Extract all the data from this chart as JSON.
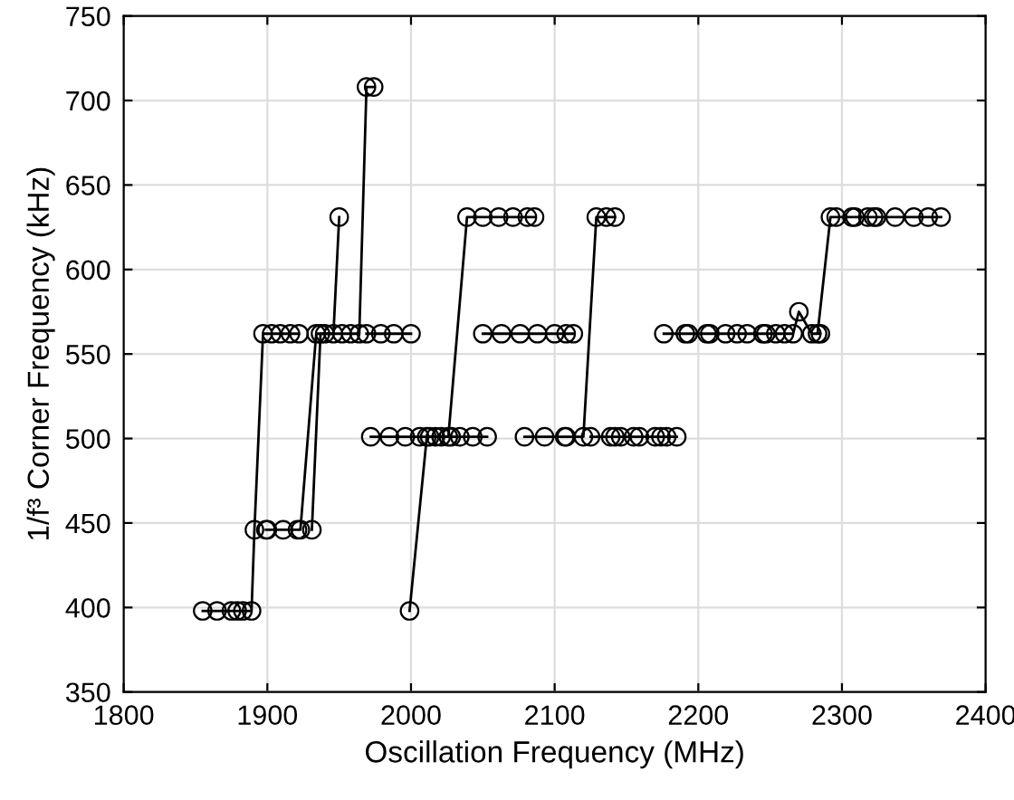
{
  "chart_data": {
    "type": "line",
    "xlabel": "Oscillation Frequency (MHz)",
    "ylabel": "1/f³ Corner Frequency (kHz)",
    "xlim": [
      1800,
      2400
    ],
    "ylim": [
      350,
      750
    ],
    "xticks": [
      1800,
      1900,
      2000,
      2100,
      2200,
      2300,
      2400
    ],
    "yticks": [
      350,
      400,
      450,
      500,
      550,
      600,
      650,
      700,
      750
    ],
    "grid": true,
    "marker": "circle",
    "line_style": "solid",
    "series": [
      {
        "color": "#000000",
        "x": [
          1855,
          1865,
          1875,
          1879,
          1883,
          1889,
          1891,
          1897,
          1903,
          1909,
          1916,
          1922
        ],
        "values": [
          398,
          398,
          398,
          398,
          398,
          398,
          446,
          562,
          562,
          562,
          562,
          562
        ]
      },
      {
        "color": "#000000",
        "x": [
          1899,
          1900,
          1911,
          1921,
          1923,
          1934,
          1940,
          1946,
          1950
        ],
        "values": [
          446,
          446,
          446,
          446,
          446,
          562,
          562,
          562,
          631
        ]
      },
      {
        "color": "#000000",
        "x": [
          1931,
          1937,
          1952,
          1958,
          1964,
          1969,
          1974
        ],
        "values": [
          446,
          562,
          562,
          562,
          562,
          708,
          708
        ]
      },
      {
        "color": "#000000",
        "x": [
          1969,
          1979,
          1988,
          2000
        ],
        "values": [
          562,
          562,
          562,
          562
        ]
      },
      {
        "color": "#000000",
        "x": [
          1972,
          1985,
          1996,
          2006,
          2013,
          2017,
          2028,
          2034,
          2043,
          2053
        ],
        "values": [
          501,
          501,
          501,
          501,
          501,
          501,
          501,
          501,
          501,
          501
        ]
      },
      {
        "color": "#000000",
        "x": [
          1999,
          2011,
          2021,
          2026,
          2039,
          2050,
          2061,
          2071,
          2081,
          2086
        ],
        "values": [
          398,
          501,
          501,
          501,
          631,
          631,
          631,
          631,
          631,
          631
        ]
      },
      {
        "color": "#000000",
        "x": [
          2050,
          2063,
          2076,
          2088,
          2100,
          2108,
          2113
        ],
        "values": [
          562,
          562,
          562,
          562,
          562,
          562,
          562
        ]
      },
      {
        "color": "#000000",
        "x": [
          2079,
          2093,
          2107,
          2108,
          2120,
          2129,
          2136,
          2142
        ],
        "values": [
          501,
          501,
          501,
          501,
          501,
          631,
          631,
          631
        ]
      },
      {
        "color": "#000000",
        "x": [
          2125,
          2139,
          2142,
          2146,
          2155,
          2159,
          2170,
          2174,
          2178,
          2185
        ],
        "values": [
          501,
          501,
          501,
          501,
          501,
          501,
          501,
          501,
          501,
          501
        ]
      },
      {
        "color": "#000000",
        "x": [
          2176,
          2191,
          2193,
          2206,
          2208,
          2219,
          2227,
          2234,
          2245,
          2247,
          2254,
          2260,
          2266,
          2270,
          2279,
          2285,
          2283,
          2292,
          2296,
          2307,
          2309,
          2318,
          2322,
          2324,
          2337,
          2350,
          2360,
          2369
        ],
        "values": [
          562,
          562,
          562,
          562,
          562,
          562,
          562,
          562,
          562,
          562,
          562,
          562,
          562,
          575,
          562,
          562,
          562,
          631,
          631,
          631,
          631,
          631,
          631,
          631,
          631,
          631,
          631,
          631
        ]
      }
    ]
  }
}
